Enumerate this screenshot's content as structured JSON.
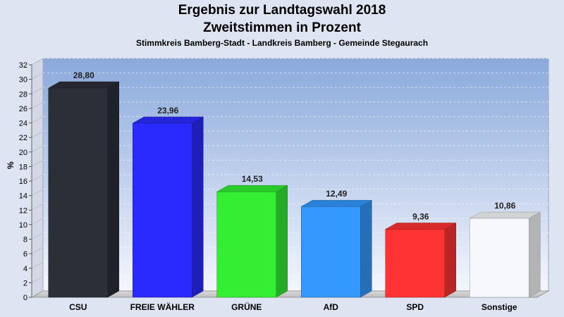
{
  "chart_data": {
    "type": "bar",
    "title": "Ergebnis zur Landtagswahl 2018",
    "title2": "Zweitstimmen in Prozent",
    "subtitle": "Stimmkreis Bamberg-Stadt - Landkreis Bamberg - Gemeinde Stegaurach",
    "ylabel": "%",
    "xlabel": "",
    "ylim": [
      0,
      32
    ],
    "yticks": [
      0,
      2,
      4,
      6,
      8,
      10,
      12,
      14,
      16,
      18,
      20,
      22,
      24,
      26,
      28,
      30,
      32
    ],
    "grid": true,
    "legend": "none",
    "categories": [
      "CSU",
      "FREIE WÄHLER",
      "GRÜNE",
      "AfD",
      "SPD",
      "Sonstige"
    ],
    "values": [
      28.8,
      23.96,
      14.53,
      12.49,
      9.36,
      10.86
    ],
    "value_labels": [
      "28,80",
      "23,96",
      "14,53",
      "12,49",
      "9,36",
      "10,86"
    ],
    "colors": [
      "#2b2f38",
      "#2a2aff",
      "#33ee33",
      "#3399ff",
      "#ff3333",
      "#f7f8fc"
    ]
  }
}
